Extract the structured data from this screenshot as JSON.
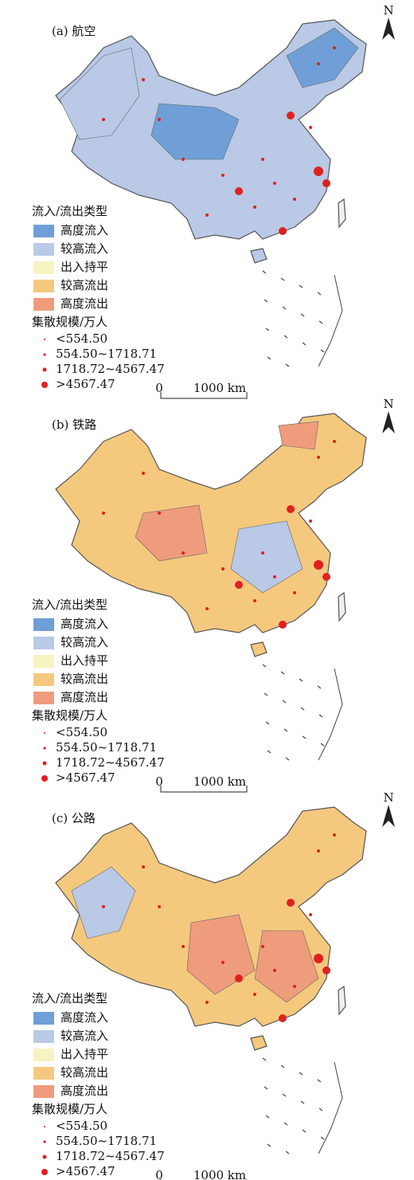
{
  "panels": [
    {
      "title": "(a) 航空",
      "north": "N",
      "base_color": "#b9c9e6",
      "legend_flow_title": "流入/流出类型",
      "flow_classes": [
        {
          "label": "高度流入",
          "color": "#6f9fd6"
        },
        {
          "label": "较高流入",
          "color": "#b9c9e6"
        },
        {
          "label": "出入持平",
          "color": "#f7f3c2"
        },
        {
          "label": "较高流出",
          "color": "#f4c97e"
        },
        {
          "label": "高度流出",
          "color": "#ee9c7c"
        }
      ],
      "legend_size_title": "集散规模/万人",
      "size_classes": [
        "<554.50",
        "554.50~1718.71",
        "1718.72~4567.47",
        ">4567.47"
      ],
      "scale_zero": "0",
      "scale_distance": "1000 km"
    },
    {
      "title": "(b) 铁路",
      "north": "N",
      "base_color": "#f4c97e",
      "legend_flow_title": "流入/流出类型",
      "flow_classes": [
        {
          "label": "高度流入",
          "color": "#6f9fd6"
        },
        {
          "label": "较高流入",
          "color": "#b9c9e6"
        },
        {
          "label": "出入持平",
          "color": "#f7f3c2"
        },
        {
          "label": "较高流出",
          "color": "#f4c97e"
        },
        {
          "label": "高度流出",
          "color": "#ee9c7c"
        }
      ],
      "legend_size_title": "集散规模/万人",
      "size_classes": [
        "<554.50",
        "554.50~1718.71",
        "1718.72~4567.47",
        ">4567.47"
      ],
      "scale_zero": "0",
      "scale_distance": "1000 km"
    },
    {
      "title": "(c) 公路",
      "north": "N",
      "base_color": "#f4c97e",
      "legend_flow_title": "流入/流出类型",
      "flow_classes": [
        {
          "label": "高度流入",
          "color": "#6f9fd6"
        },
        {
          "label": "较高流入",
          "color": "#b9c9e6"
        },
        {
          "label": "出入持平",
          "color": "#f7f3c2"
        },
        {
          "label": "较高流出",
          "color": "#f4c97e"
        },
        {
          "label": "高度流出",
          "color": "#ee9c7c"
        }
      ],
      "legend_size_title": "集散规模/万人",
      "size_classes": [
        "<554.50",
        "554.50~1718.71",
        "1718.72~4567.47",
        ">4567.47"
      ],
      "scale_zero": "0",
      "scale_distance": "1000 km"
    }
  ]
}
